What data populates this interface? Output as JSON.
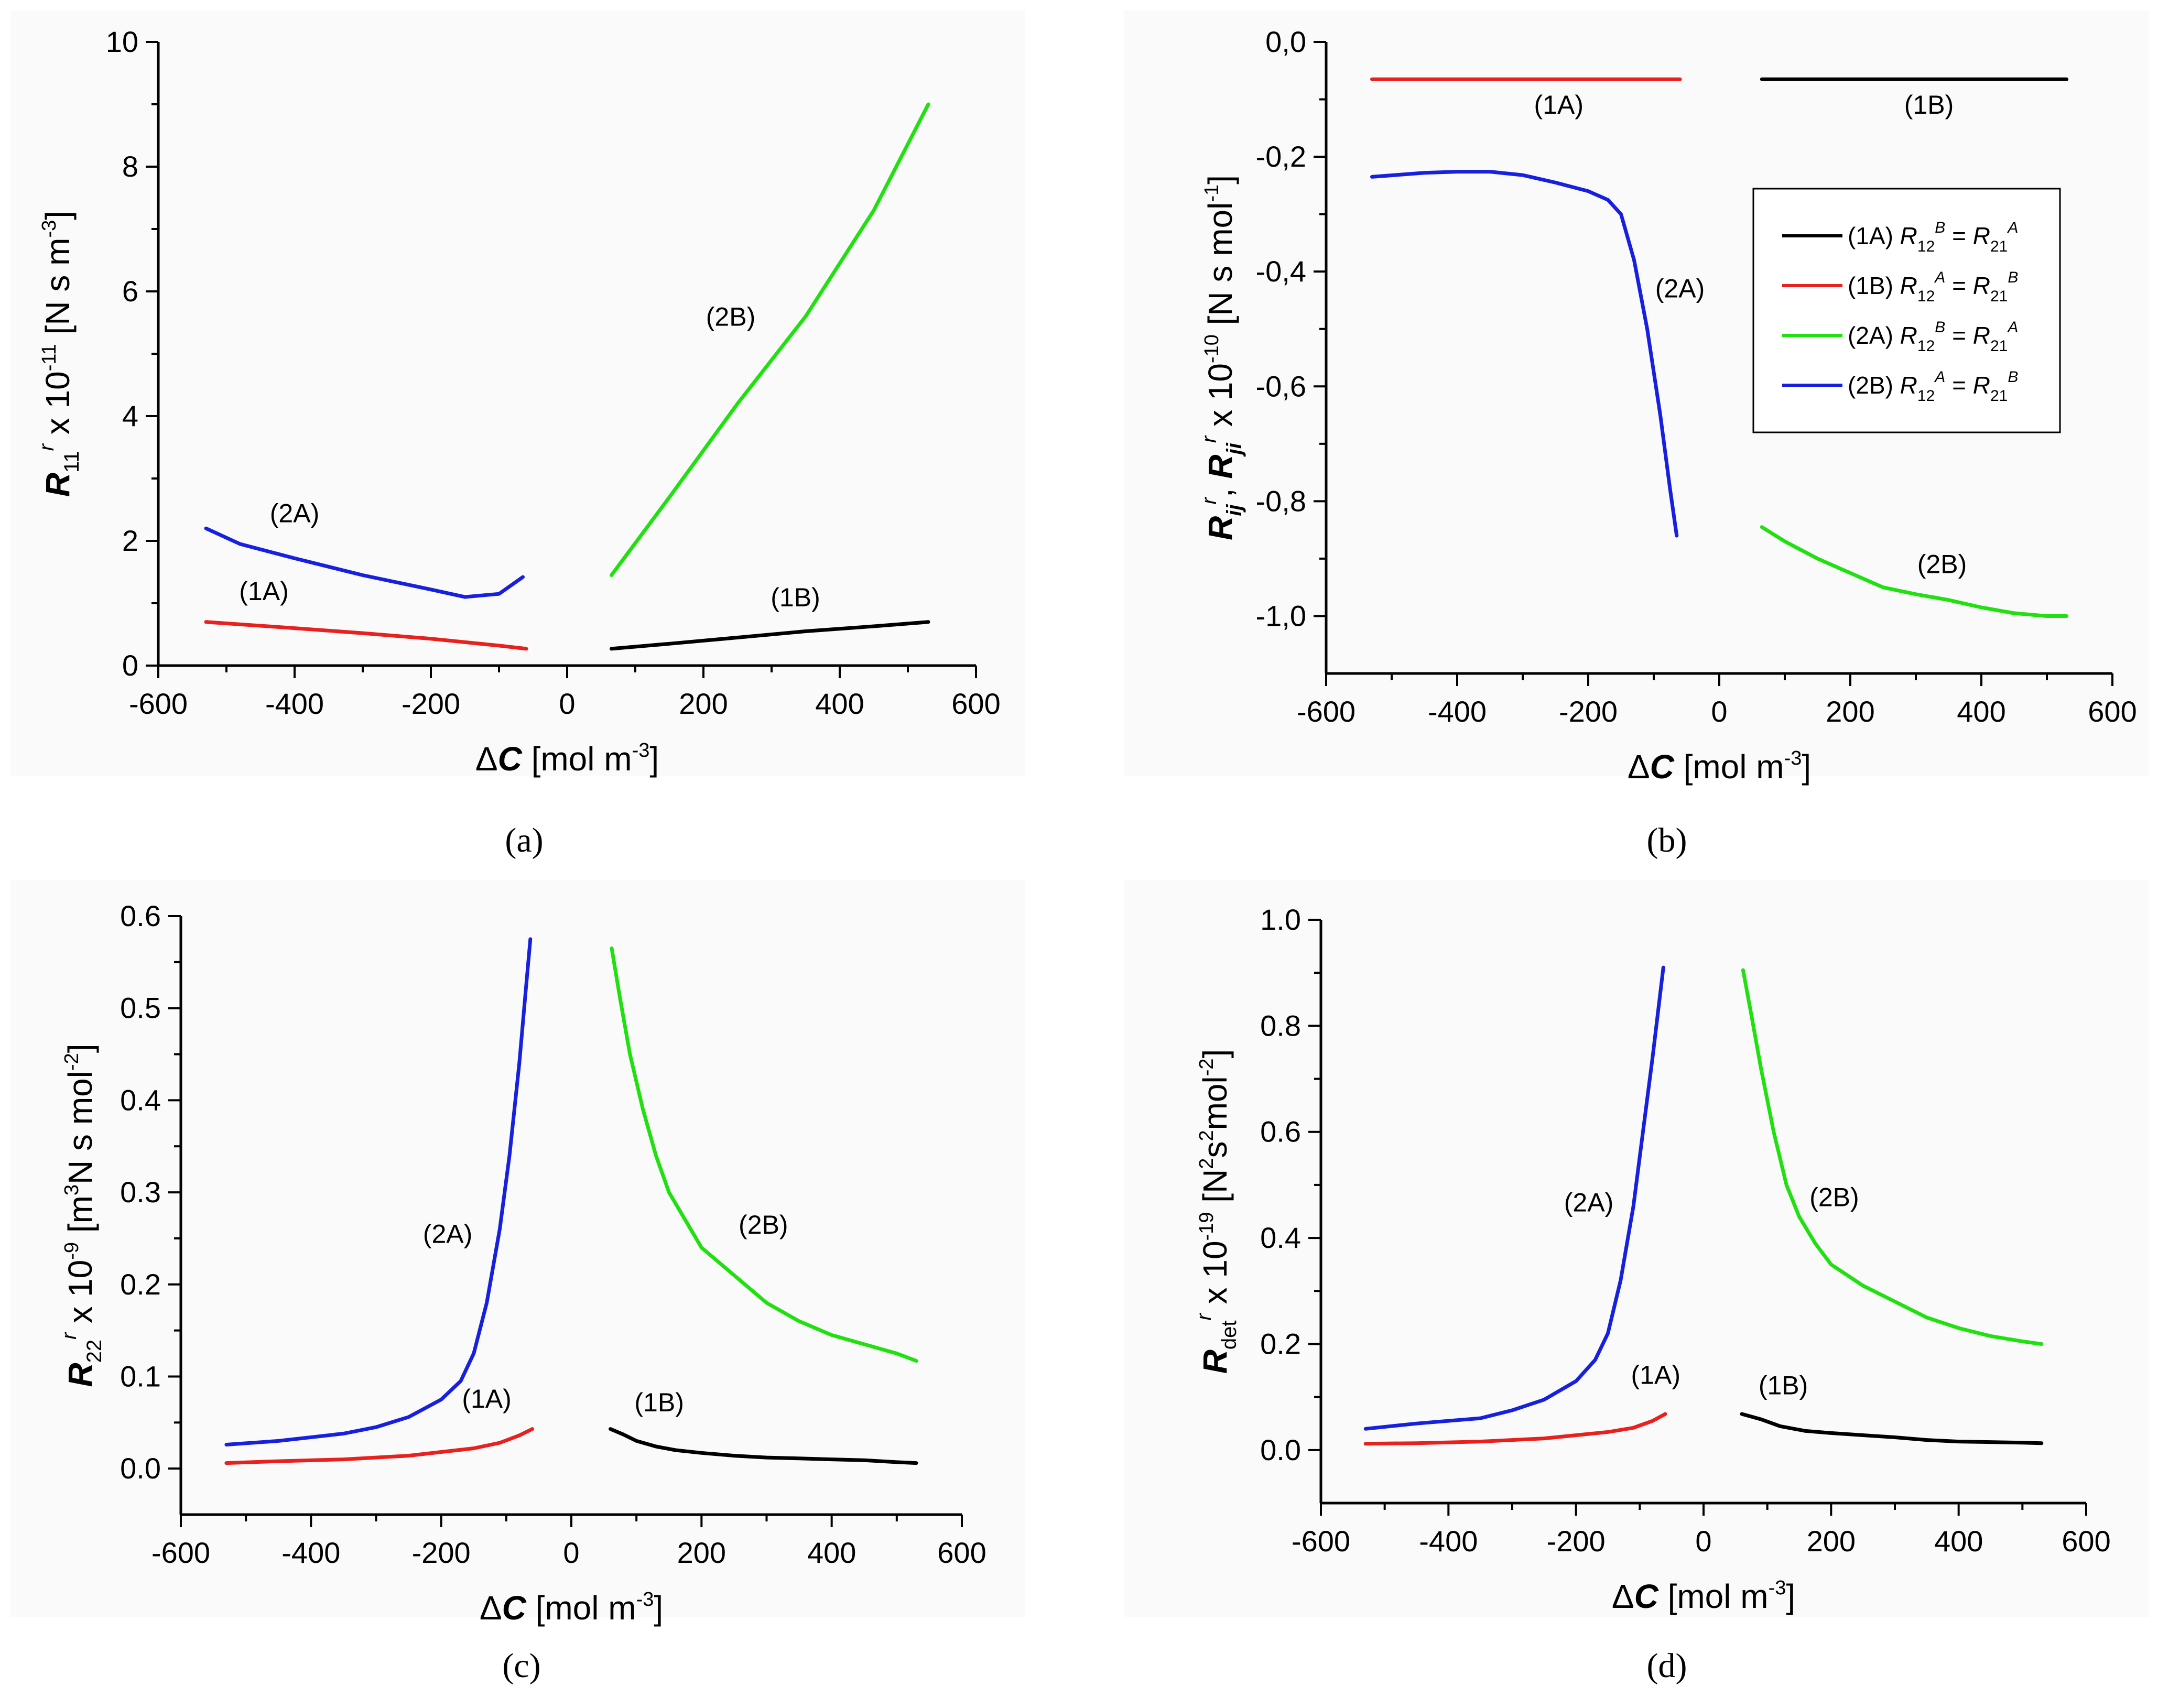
{
  "chart_data": [
    {
      "id": "a",
      "type": "line",
      "panel_label": "(a)",
      "xlabel": {
        "symbol": "Δ",
        "var": "C",
        "unit": "[mol m",
        "exp": "-3",
        "close": "]"
      },
      "ylabel": {
        "var": "R",
        "sub": "11",
        "sup": "r",
        "rest": "x 10",
        "exp": "-11",
        "unit": "[N s m",
        "unit_exp": "-3",
        "close": "]"
      },
      "xlim": [
        -600,
        600
      ],
      "ylim": [
        0,
        10
      ],
      "x_ticks": [
        "-600",
        "-400",
        "-200",
        "0",
        "200",
        "400",
        "600"
      ],
      "y_ticks": [
        "0",
        "2",
        "4",
        "6",
        "8",
        "10"
      ],
      "series": [
        {
          "name": "(1A)",
          "color": "#e8201e",
          "x": [
            -530,
            -400,
            -300,
            -200,
            -100,
            -60
          ],
          "y": [
            0.7,
            0.6,
            0.52,
            0.43,
            0.32,
            0.27
          ]
        },
        {
          "name": "(2A)",
          "color": "#1820e0",
          "x": [
            -530,
            -480,
            -400,
            -300,
            -200,
            -150,
            -100,
            -65
          ],
          "y": [
            2.2,
            1.95,
            1.72,
            1.45,
            1.22,
            1.1,
            1.15,
            1.42
          ]
        },
        {
          "name": "(1B)",
          "color": "#000000",
          "x": [
            65,
            150,
            250,
            350,
            450,
            530
          ],
          "y": [
            0.27,
            0.35,
            0.45,
            0.55,
            0.63,
            0.7
          ]
        },
        {
          "name": "(2B)",
          "color": "#20e010",
          "x": [
            65,
            150,
            250,
            350,
            450,
            530
          ],
          "y": [
            1.45,
            2.7,
            4.2,
            5.6,
            7.3,
            9.0
          ]
        }
      ],
      "annotations": [
        {
          "text": "(2A)",
          "x": -400,
          "y": 2.3
        },
        {
          "text": "(1A)",
          "x": -445,
          "y": 1.05
        },
        {
          "text": "(2B)",
          "x": 240,
          "y": 5.45
        },
        {
          "text": "(1B)",
          "x": 335,
          "y": 0.95
        }
      ]
    },
    {
      "id": "b",
      "type": "line",
      "panel_label": "(b)",
      "xlabel": {
        "symbol": "Δ",
        "var": "C",
        "unit": "[mol m",
        "exp": "-3",
        "close": "]"
      },
      "ylabel": {
        "var": "R",
        "sub": "ij",
        "sup": "r",
        "var2": "R",
        "sub2": "ji",
        "sup2": "r",
        "rest": "x 10",
        "exp": "-10",
        "unit": "[N s mol",
        "unit_exp": "-1",
        "close": "]"
      },
      "xlim": [
        -600,
        600
      ],
      "ylim": [
        -1.1,
        0.0
      ],
      "x_ticks": [
        "-600",
        "-400",
        "-200",
        "0",
        "200",
        "400",
        "600"
      ],
      "y_ticks": [
        "0,0",
        "-0,2",
        "-0,4",
        "-0,6",
        "-0,8",
        "-1,0"
      ],
      "series": [
        {
          "name": "(1A)",
          "color": "#e8201e",
          "x": [
            -530,
            -60
          ],
          "y": [
            -0.065,
            -0.065
          ]
        },
        {
          "name": "(1B)",
          "color": "#000000",
          "x": [
            65,
            530
          ],
          "y": [
            -0.065,
            -0.065
          ]
        },
        {
          "name": "(2A)",
          "color": "#1820e0",
          "x": [
            -530,
            -450,
            -400,
            -350,
            -300,
            -250,
            -200,
            -170,
            -150,
            -130,
            -110,
            -90,
            -75,
            -65
          ],
          "y": [
            -0.235,
            -0.228,
            -0.226,
            -0.226,
            -0.232,
            -0.245,
            -0.26,
            -0.275,
            -0.3,
            -0.38,
            -0.5,
            -0.65,
            -0.78,
            -0.86
          ]
        },
        {
          "name": "(2B)",
          "color": "#20e010",
          "x": [
            65,
            100,
            150,
            200,
            250,
            300,
            350,
            400,
            450,
            500,
            530
          ],
          "y": [
            -0.845,
            -0.87,
            -0.9,
            -0.925,
            -0.95,
            -0.962,
            -0.972,
            -0.985,
            -0.995,
            -1.0,
            -1.0
          ]
        }
      ],
      "annotations": [
        {
          "text": "(1A)",
          "x": -245,
          "y": -0.125
        },
        {
          "text": "(1B)",
          "x": 320,
          "y": -0.125
        },
        {
          "text": "(2A)",
          "x": -60,
          "y": -0.445
        },
        {
          "text": "(2B)",
          "x": 340,
          "y": -0.925
        }
      ],
      "legend": {
        "position": "top-right",
        "entries": [
          {
            "label": "(1A)",
            "color": "#000000",
            "a": "R",
            "a_sub": "12",
            "a_sup": "B",
            "eq": "=",
            "b": "R",
            "b_sub": "21",
            "b_sup": "A"
          },
          {
            "label": "(1B)",
            "color": "#e8201e",
            "a": "R",
            "a_sub": "12",
            "a_sup": "A",
            "eq": "=",
            "b": "R",
            "b_sub": "21",
            "b_sup": "B"
          },
          {
            "label": "(2A)",
            "color": "#20e010",
            "a": "R",
            "a_sub": "12",
            "a_sup": "B",
            "eq": "=",
            "b": "R",
            "b_sub": "21",
            "b_sup": "A"
          },
          {
            "label": "(2B)",
            "color": "#1820e0",
            "a": "R",
            "a_sub": "12",
            "a_sup": "A",
            "eq": "=",
            "b": "R",
            "b_sub": "21",
            "b_sup": "B"
          }
        ]
      }
    },
    {
      "id": "c",
      "type": "line",
      "panel_label": "(c)",
      "xlabel": {
        "symbol": "Δ",
        "var": "C",
        "unit": "[mol m",
        "exp": "-3",
        "close": "]"
      },
      "ylabel": {
        "var": "R",
        "sub": "22",
        "sup": "r",
        "rest": "x 10",
        "exp": "-9",
        "unit": "[m",
        "unit_mid": "3",
        "unit2": "N s mol",
        "unit_exp": "-2",
        "close": "]"
      },
      "xlim": [
        -600,
        600
      ],
      "ylim": [
        -0.05,
        0.6
      ],
      "x_ticks": [
        "-600",
        "-400",
        "-200",
        "0",
        "200",
        "400",
        "600"
      ],
      "y_ticks": [
        "0.0",
        "0.1",
        "0.2",
        "0.3",
        "0.4",
        "0.5",
        "0.6"
      ],
      "series": [
        {
          "name": "(1A)",
          "color": "#e8201e",
          "x": [
            -530,
            -450,
            -350,
            -250,
            -200,
            -150,
            -110,
            -80,
            -60
          ],
          "y": [
            0.006,
            0.008,
            0.01,
            0.014,
            0.018,
            0.022,
            0.028,
            0.036,
            0.043
          ]
        },
        {
          "name": "(2A)",
          "color": "#1820e0",
          "x": [
            -530,
            -450,
            -350,
            -300,
            -250,
            -200,
            -170,
            -150,
            -130,
            -110,
            -95,
            -80,
            -70,
            -63
          ],
          "y": [
            0.026,
            0.03,
            0.038,
            0.045,
            0.056,
            0.075,
            0.095,
            0.125,
            0.18,
            0.26,
            0.34,
            0.44,
            0.52,
            0.575
          ]
        },
        {
          "name": "(1B)",
          "color": "#000000",
          "x": [
            60,
            80,
            100,
            130,
            160,
            200,
            250,
            300,
            350,
            400,
            450,
            500,
            530
          ],
          "y": [
            0.043,
            0.037,
            0.03,
            0.024,
            0.02,
            0.017,
            0.014,
            0.012,
            0.011,
            0.01,
            0.009,
            0.007,
            0.006
          ]
        },
        {
          "name": "(2B)",
          "color": "#20e010",
          "x": [
            62,
            75,
            90,
            110,
            130,
            150,
            175,
            200,
            250,
            300,
            350,
            400,
            450,
            500,
            530
          ],
          "y": [
            0.565,
            0.51,
            0.45,
            0.39,
            0.34,
            0.3,
            0.27,
            0.24,
            0.21,
            0.18,
            0.16,
            0.145,
            0.135,
            0.125,
            0.117
          ]
        }
      ],
      "annotations": [
        {
          "text": "(2A)",
          "x": -190,
          "y": 0.245
        },
        {
          "text": "(1A)",
          "x": -130,
          "y": 0.066
        },
        {
          "text": "(2B)",
          "x": 295,
          "y": 0.255
        },
        {
          "text": "(1B)",
          "x": 135,
          "y": 0.062
        }
      ]
    },
    {
      "id": "d",
      "type": "line",
      "panel_label": "(d)",
      "xlabel": {
        "symbol": "Δ",
        "var": "C",
        "unit": "[mol m",
        "exp": "-3",
        "close": "]"
      },
      "ylabel": {
        "var": "R",
        "sub": "det",
        "sup": "r",
        "rest": "x 10",
        "exp": "-19",
        "unit": "[N",
        "unit_mid": "2",
        "unit2": "s",
        "unit_mid2": "2",
        "unit3": "mol",
        "unit_exp": "-2",
        "close": "]"
      },
      "xlim": [
        -600,
        600
      ],
      "ylim": [
        -0.1,
        1.0
      ],
      "x_ticks": [
        "-600",
        "-400",
        "-200",
        "0",
        "200",
        "400",
        "600"
      ],
      "y_ticks": [
        "0.0",
        "0.2",
        "0.4",
        "0.6",
        "0.8",
        "1.0"
      ],
      "series": [
        {
          "name": "(1A)",
          "color": "#e8201e",
          "x": [
            -530,
            -450,
            -350,
            -250,
            -200,
            -150,
            -110,
            -80,
            -60
          ],
          "y": [
            0.012,
            0.013,
            0.016,
            0.022,
            0.028,
            0.034,
            0.042,
            0.055,
            0.068
          ]
        },
        {
          "name": "(2A)",
          "color": "#1820e0",
          "x": [
            -530,
            -450,
            -350,
            -300,
            -250,
            -200,
            -170,
            -150,
            -130,
            -110,
            -95,
            -80,
            -70,
            -63
          ],
          "y": [
            0.04,
            0.05,
            0.06,
            0.075,
            0.095,
            0.13,
            0.17,
            0.22,
            0.32,
            0.46,
            0.6,
            0.74,
            0.84,
            0.91
          ]
        },
        {
          "name": "(1B)",
          "color": "#000000",
          "x": [
            60,
            90,
            120,
            160,
            200,
            250,
            300,
            350,
            400,
            450,
            500,
            530
          ],
          "y": [
            0.068,
            0.058,
            0.045,
            0.036,
            0.032,
            0.028,
            0.024,
            0.019,
            0.016,
            0.015,
            0.014,
            0.013
          ]
        },
        {
          "name": "(2B)",
          "color": "#20e010",
          "x": [
            62,
            75,
            90,
            110,
            130,
            150,
            175,
            200,
            250,
            300,
            350,
            400,
            450,
            500,
            530
          ],
          "y": [
            0.905,
            0.82,
            0.72,
            0.6,
            0.5,
            0.44,
            0.39,
            0.35,
            0.31,
            0.28,
            0.25,
            0.23,
            0.215,
            0.205,
            0.2
          ]
        }
      ],
      "annotations": [
        {
          "text": "(2A)",
          "x": -180,
          "y": 0.45
        },
        {
          "text": "(1A)",
          "x": -75,
          "y": 0.125
        },
        {
          "text": "(2B)",
          "x": 205,
          "y": 0.46
        },
        {
          "text": "(1B)",
          "x": 125,
          "y": 0.105
        }
      ]
    }
  ]
}
